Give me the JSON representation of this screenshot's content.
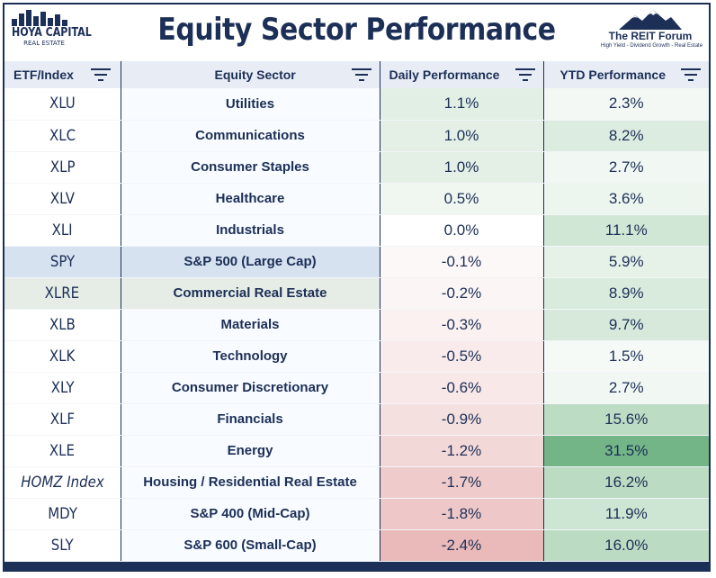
{
  "header": {
    "title": "Equity Sector Performance",
    "left_logo": {
      "name": "HOYA CAPITAL",
      "sub": "REAL ESTATE"
    },
    "right_logo": {
      "name": "The REIT Forum",
      "tagline": "High Yield - Dividend Growth - Real Estate"
    }
  },
  "columns": [
    "ETF/Index",
    "Equity Sector",
    "Daily Performance",
    "YTD Performance"
  ],
  "colors": {
    "navy": "#1c2f57",
    "header_bg": "#e8edf5",
    "highlight_spy": "#d6e2f0",
    "highlight_xlre": "#e6ede6"
  },
  "rows": [
    {
      "etf": "XLU",
      "sector": "Utilities",
      "daily": "1.1%",
      "ytd": "2.3%",
      "daily_bg": "#e2efe5",
      "ytd_bg": "#f3f8f4"
    },
    {
      "etf": "XLC",
      "sector": "Communications",
      "daily": "1.0%",
      "ytd": "8.2%",
      "daily_bg": "#e4f0e6",
      "ytd_bg": "#dcece0"
    },
    {
      "etf": "XLP",
      "sector": "Consumer Staples",
      "daily": "1.0%",
      "ytd": "2.7%",
      "daily_bg": "#e4f0e6",
      "ytd_bg": "#f1f7f2"
    },
    {
      "etf": "XLV",
      "sector": "Healthcare",
      "daily": "0.5%",
      "ytd": "3.6%",
      "daily_bg": "#f0f7f1",
      "ytd_bg": "#ecf5ee"
    },
    {
      "etf": "XLI",
      "sector": "Industrials",
      "daily": "0.0%",
      "ytd": "11.1%",
      "daily_bg": "#ffffff",
      "ytd_bg": "#d1e7d6"
    },
    {
      "etf": "SPY",
      "sector": "S&P 500 (Large Cap)",
      "daily": "-0.1%",
      "ytd": "5.9%",
      "daily_bg": "#fdf8f8",
      "ytd_bg": "#e6f2e8",
      "row_bg": "#d6e2f0"
    },
    {
      "etf": "XLRE",
      "sector": "Commercial Real Estate",
      "daily": "-0.2%",
      "ytd": "8.9%",
      "daily_bg": "#fcf5f5",
      "ytd_bg": "#d9ebdd",
      "row_bg": "#e6ede6"
    },
    {
      "etf": "XLB",
      "sector": "Materials",
      "daily": "-0.3%",
      "ytd": "9.7%",
      "daily_bg": "#fbf1f1",
      "ytd_bg": "#d6e9da"
    },
    {
      "etf": "XLK",
      "sector": "Technology",
      "daily": "-0.5%",
      "ytd": "1.5%",
      "daily_bg": "#f9ebeb",
      "ytd_bg": "#f6faf7"
    },
    {
      "etf": "XLY",
      "sector": "Consumer Discretionary",
      "daily": "-0.6%",
      "ytd": "2.7%",
      "daily_bg": "#f8e8e8",
      "ytd_bg": "#f1f7f2"
    },
    {
      "etf": "XLF",
      "sector": "Financials",
      "daily": "-0.9%",
      "ytd": "15.6%",
      "daily_bg": "#f5e0e0",
      "ytd_bg": "#bddcc4"
    },
    {
      "etf": "XLE",
      "sector": "Energy",
      "daily": "-1.2%",
      "ytd": "31.5%",
      "daily_bg": "#f3d8d8",
      "ytd_bg": "#73b587"
    },
    {
      "etf": "HOMZ Index",
      "sector": "Housing / Residential Real Estate",
      "daily": "-1.7%",
      "ytd": "16.2%",
      "daily_bg": "#efcbcb",
      "ytd_bg": "#bbdbc2",
      "italic": true
    },
    {
      "etf": "MDY",
      "sector": "S&P 400 (Mid-Cap)",
      "daily": "-1.8%",
      "ytd": "11.9%",
      "daily_bg": "#eec8c8",
      "ytd_bg": "#cde5d3"
    },
    {
      "etf": "SLY",
      "sector": "S&P 600 (Small-Cap)",
      "daily": "-2.4%",
      "ytd": "16.0%",
      "daily_bg": "#eab9b9",
      "ytd_bg": "#bcdbc3"
    }
  ]
}
